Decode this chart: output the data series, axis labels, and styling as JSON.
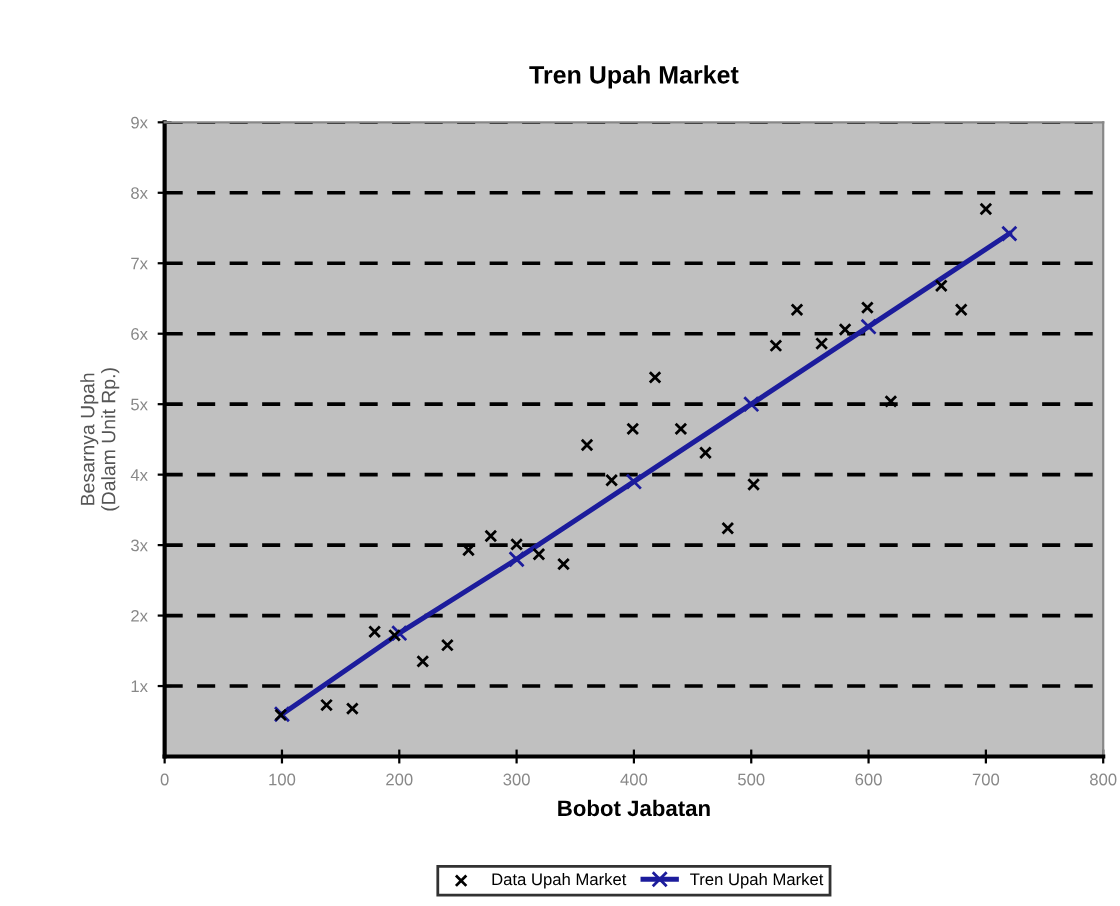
{
  "chart_data": {
    "type": "scatter",
    "title": "Tren Upah Market",
    "xlabel": "Bobot Jabatan",
    "ylabel": "Besarnya Upah\n(Dalam Unit Rp.)",
    "xlim": [
      0,
      800
    ],
    "xticks": [
      0,
      100,
      200,
      300,
      400,
      500,
      600,
      700,
      800
    ],
    "ylim": [
      0,
      9
    ],
    "yticks": [
      {
        "value": 1,
        "label": "1x"
      },
      {
        "value": 2,
        "label": "2x"
      },
      {
        "value": 3,
        "label": "3x"
      },
      {
        "value": 4,
        "label": "4x"
      },
      {
        "value": 5,
        "label": "5x"
      },
      {
        "value": 6,
        "label": "6x"
      },
      {
        "value": 7,
        "label": "7x"
      },
      {
        "value": 8,
        "label": "8x"
      },
      {
        "value": 9,
        "label": "9x"
      }
    ],
    "grid": "y",
    "legend": "bottom",
    "series": [
      {
        "name": "Data Upah Market",
        "marker": "cross",
        "color": "#000000",
        "x": [
          99,
          138,
          160,
          220,
          241,
          179,
          196,
          259,
          278,
          300,
          319,
          340,
          360,
          381,
          399,
          418,
          440,
          461,
          502,
          480,
          521,
          539,
          560,
          580,
          599,
          619,
          662,
          679,
          700
        ],
        "values": [
          0.59,
          0.73,
          0.68,
          1.35,
          1.58,
          1.77,
          1.72,
          2.93,
          3.13,
          3.01,
          2.87,
          2.73,
          4.42,
          3.92,
          4.65,
          5.38,
          4.65,
          4.31,
          3.86,
          3.24,
          5.83,
          6.34,
          5.86,
          6.06,
          6.37,
          5.04,
          6.68,
          6.34,
          7.77
        ]
      },
      {
        "name": "Tren Upah Market",
        "type": "line",
        "marker": "cross",
        "color": "#1c1c9c",
        "x": [
          100,
          200,
          300,
          400,
          500,
          600,
          720
        ],
        "values": [
          0.6,
          1.75,
          2.8,
          3.9,
          5.0,
          6.1,
          7.42
        ]
      }
    ]
  }
}
